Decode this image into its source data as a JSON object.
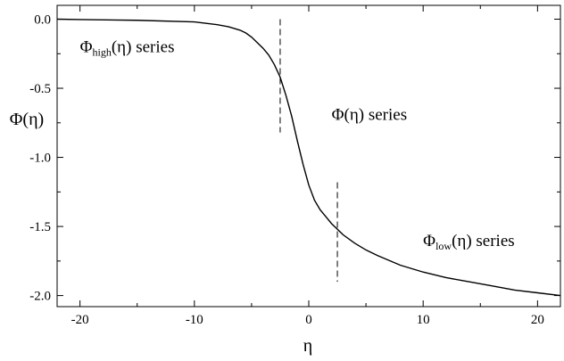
{
  "chart_data": {
    "type": "line",
    "xlabel": "η",
    "ylabel": "Φ(η)",
    "xlim": [
      -22,
      22
    ],
    "ylim": [
      -2.08,
      0.1
    ],
    "x_ticks": [
      -20,
      -10,
      0,
      10,
      20
    ],
    "x_tick_labels": [
      "-20",
      "-10",
      "0",
      "10",
      "20"
    ],
    "y_ticks": [
      0.0,
      -0.5,
      -1.0,
      -1.5,
      -2.0
    ],
    "y_tick_labels": [
      "0.0",
      "-0.5",
      "-1.0",
      "-1.5",
      "-2.0"
    ],
    "grid": false,
    "legend": "none",
    "series": [
      {
        "x": [
          -22,
          -20,
          -15,
          -10,
          -8,
          -7,
          -6,
          -5.5,
          -5,
          -4.5,
          -4,
          -3.5,
          -3,
          -2.5,
          -2,
          -1.5,
          -1,
          -0.5,
          0,
          0.5,
          1,
          1.5,
          2,
          2.5,
          3,
          4,
          5,
          6,
          8,
          10,
          12,
          14,
          16,
          18,
          20,
          22
        ],
        "y": [
          0.0,
          -0.003,
          -0.008,
          -0.02,
          -0.04,
          -0.055,
          -0.08,
          -0.1,
          -0.13,
          -0.17,
          -0.21,
          -0.26,
          -0.33,
          -0.42,
          -0.55,
          -0.7,
          -0.88,
          -1.05,
          -1.2,
          -1.31,
          -1.38,
          -1.43,
          -1.48,
          -1.52,
          -1.56,
          -1.62,
          -1.67,
          -1.71,
          -1.78,
          -1.83,
          -1.87,
          -1.9,
          -1.93,
          -1.96,
          -1.98,
          -2.0
        ],
        "color": "#000000"
      }
    ],
    "markers": [
      {
        "x": -2.5,
        "y_from": 0.0,
        "y_to": -0.82
      },
      {
        "x": 2.5,
        "y_from": -1.18,
        "y_to": -1.9
      }
    ],
    "annotations": [
      {
        "text_main": "Φ",
        "text_sub": "high",
        "text_rest": "(η) series",
        "x": -20,
        "y": -0.24
      },
      {
        "text_main": "Φ(η) series",
        "text_sub": "",
        "text_rest": "",
        "x": 2,
        "y": -0.73
      },
      {
        "text_main": "Φ",
        "text_sub": "low",
        "text_rest": "(η) series",
        "x": 10,
        "y": -1.64
      }
    ]
  }
}
